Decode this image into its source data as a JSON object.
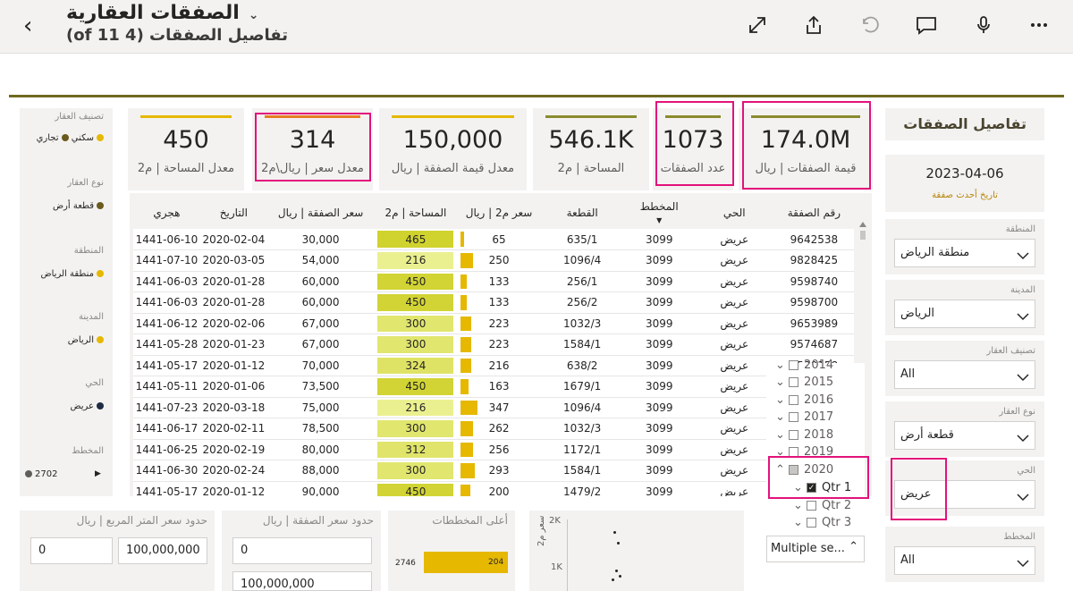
{
  "header": {
    "title": "الصفقات العقارية",
    "subtitle": "تفاصيل الصفقات (4 of 11)"
  },
  "kpis": [
    {
      "value": "450",
      "label": "معدل المساحة | م2",
      "color": "#e6b800"
    },
    {
      "value": "314",
      "label": "معدل سعر | ريال\\م2",
      "color": "#e67e22"
    },
    {
      "value": "150,000",
      "label": "معدل قيمة الصفقة | ريال",
      "color": "#e6b800"
    },
    {
      "value": "546.1K",
      "label": "المساحة | م2",
      "color": "#8a8b2e"
    },
    {
      "value": "1073",
      "label": "عدد الصفقات",
      "color": "#8a8b2e"
    },
    {
      "value": "174.0M",
      "label": "قيمة الصفقات | ريال",
      "color": "#8a8b2e"
    }
  ],
  "legend": [
    {
      "title": "تصنيف العقار",
      "items": [
        {
          "label": "سكني",
          "color": "#e6b800"
        },
        {
          "label": "تجاري",
          "color": "#6b5a1e"
        }
      ]
    },
    {
      "title": "نوع العقار",
      "items": [
        {
          "label": "قطعة أرض",
          "color": "#6b5a1e"
        }
      ]
    },
    {
      "title": "المنطقة",
      "items": [
        {
          "label": "منطقة الرياض",
          "color": "#e6b800"
        }
      ]
    },
    {
      "title": "المدينة",
      "items": [
        {
          "label": "الرياض",
          "color": "#e6b800"
        }
      ]
    },
    {
      "title": "الحي",
      "items": [
        {
          "label": "عريض",
          "color": "#1f2a44"
        }
      ]
    },
    {
      "title": "المخطط",
      "items": [
        {
          "label": "2702",
          "color": "#605e5c"
        }
      ]
    }
  ],
  "table": {
    "columns": [
      "هجري",
      "التاريخ",
      "سعر الصفقة | ريال",
      "المساحة | م2",
      "سعر م2 | ريال",
      "القطعة",
      "المخطط",
      "الحي",
      "رقم الصفقة"
    ],
    "rows": [
      [
        "1441-06-10",
        "2020-02-04",
        "30,000",
        "465",
        "65",
        "635/1",
        "3099",
        "عريض",
        "9642538"
      ],
      [
        "1441-07-10",
        "2020-03-05",
        "54,000",
        "216",
        "250",
        "1096/4",
        "3099",
        "عريض",
        "9828425"
      ],
      [
        "1441-06-03",
        "2020-01-28",
        "60,000",
        "450",
        "133",
        "256/1",
        "3099",
        "عريض",
        "9598740"
      ],
      [
        "1441-06-03",
        "2020-01-28",
        "60,000",
        "450",
        "133",
        "256/2",
        "3099",
        "عريض",
        "9598700"
      ],
      [
        "1441-06-12",
        "2020-02-06",
        "67,000",
        "300",
        "223",
        "1032/3",
        "3099",
        "عريض",
        "9653989"
      ],
      [
        "1441-05-28",
        "2020-01-23",
        "67,000",
        "300",
        "223",
        "1584/1",
        "3099",
        "عريض",
        "9574687"
      ],
      [
        "1441-05-17",
        "2020-01-12",
        "70,000",
        "324",
        "216",
        "638/2",
        "3099",
        "عريض",
        "9530158"
      ],
      [
        "1441-05-11",
        "2020-01-06",
        "73,500",
        "450",
        "163",
        "1679/1",
        "3099",
        "عريض",
        "9515468"
      ],
      [
        "1441-07-23",
        "2020-03-18",
        "75,000",
        "216",
        "347",
        "1096/4",
        "3099",
        "عريض",
        "9866370"
      ],
      [
        "1441-06-17",
        "2020-02-11",
        "78,500",
        "300",
        "262",
        "1032/3",
        "3099",
        "عريض",
        "9668412"
      ],
      [
        "1441-06-25",
        "2020-02-19",
        "80,000",
        "312",
        "256",
        "1172/1",
        "3099",
        "عريض",
        "9697501"
      ],
      [
        "1441-06-30",
        "2020-02-24",
        "88,000",
        "300",
        "293",
        "1584/1",
        "3099",
        "عريض",
        "9713690"
      ],
      [
        "1441-05-17",
        "2020-01-12",
        "90,000",
        "450",
        "200",
        "1479/2",
        "3099",
        "عريض",
        "9530166"
      ]
    ]
  },
  "right": {
    "panel_title": "تفاصيل الصفقات",
    "latest_date": "2023-04-06",
    "latest_date_label": "تاريخ أحدث صفقة",
    "slicers": [
      {
        "label": "المنطقة",
        "value": "منطقة الرياض"
      },
      {
        "label": "المدينة",
        "value": "الرياض"
      },
      {
        "label": "تصنيف العقار",
        "value": "All"
      },
      {
        "label": "نوع العقار",
        "value": "قطعة أرض"
      },
      {
        "label": "الحي",
        "value": "عريض"
      },
      {
        "label": "المخطط",
        "value": "All"
      }
    ]
  },
  "years": [
    "2014",
    "2015",
    "2016",
    "2017",
    "2018",
    "2019",
    "2020"
  ],
  "quarters": [
    "Qtr 1",
    "Qtr 2",
    "Qtr 3"
  ],
  "multiple_select": "Multiple se...",
  "bottom": {
    "price_m2_title": "حدود سعر المتر المربع | ريال",
    "price_m2_min": "0",
    "price_m2_max": "100,000,000",
    "deal_price_title": "حدود سعر الصفقة | ريال",
    "deal_price_min": "0",
    "deal_price_max": "100,000,000",
    "top_plans_title": "أعلى المخططات",
    "top_plan_name": "2746",
    "top_plan_value": "204",
    "scatter_y_label": "سعر م2",
    "scatter_ticks": [
      "2K",
      "1K"
    ]
  }
}
